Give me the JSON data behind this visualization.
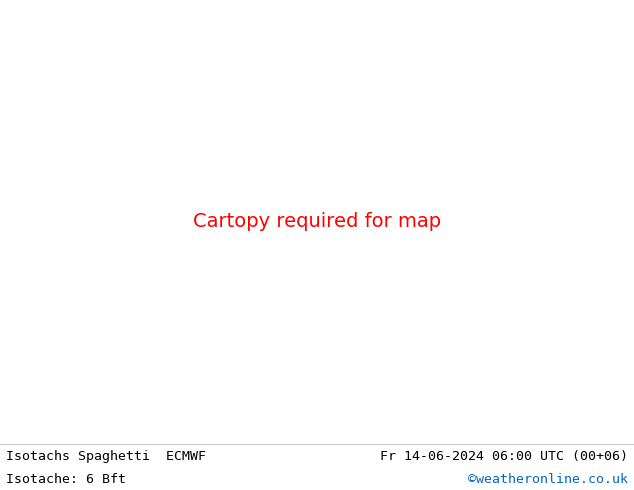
{
  "title_left": "Isotachs Spaghetti  ECMWF",
  "title_right": "Fr 14-06-2024 06:00 UTC (00+06)",
  "subtitle_left": "Isotache: 6 Bft",
  "subtitle_right": "©weatheronline.co.uk",
  "subtitle_right_color": "#0066cc",
  "background_color": "#ffffff",
  "land_color": "#c8f5c8",
  "sea_color": "#f0f0f0",
  "border_color": "#999999",
  "coastline_color": "#888888",
  "footer_bg": "#ffffff",
  "footer_text_color": "#000000",
  "figsize": [
    6.34,
    4.9
  ],
  "dpi": 100,
  "extent": [
    -60,
    60,
    25,
    80
  ],
  "spaghetti_colors": [
    "#ff0000",
    "#0000ff",
    "#00cc00",
    "#ff8800",
    "#cc00cc",
    "#00cccc",
    "#ffff00",
    "#ff69b4",
    "#8800ff",
    "#00aa44",
    "#ff3300",
    "#3300ff",
    "#33cc00",
    "#ff6600",
    "#9900cc",
    "#00aacc",
    "#aaff00",
    "#ff99cc",
    "#6600ff",
    "#00ffaa"
  ],
  "num_ensemble": 51
}
